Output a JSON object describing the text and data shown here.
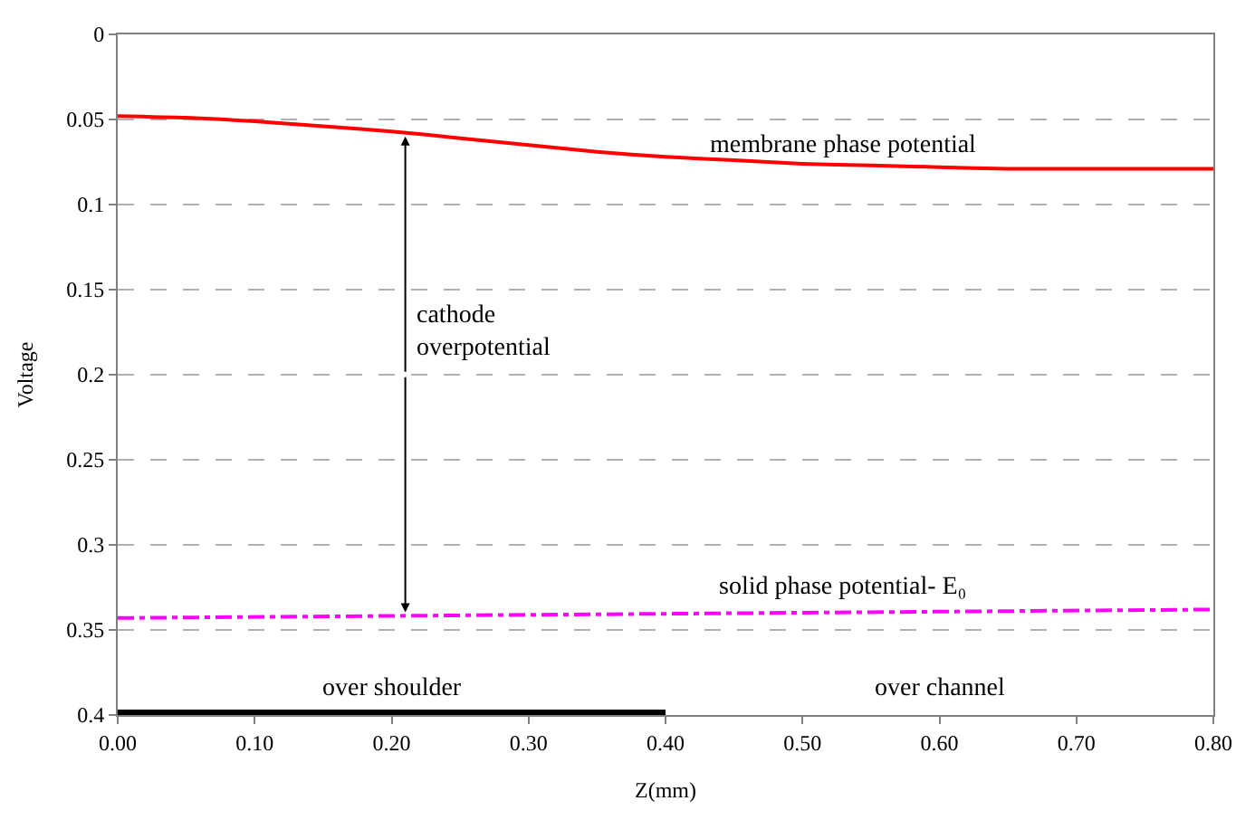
{
  "chart_data": {
    "type": "line",
    "xlabel": "Z(mm)",
    "ylabel": "Voltage",
    "x": [
      0,
      0.05,
      0.1,
      0.15,
      0.2,
      0.25,
      0.3,
      0.35,
      0.4,
      0.45,
      0.5,
      0.55,
      0.6,
      0.65,
      0.7,
      0.75,
      0.8
    ],
    "series": [
      {
        "color": "#ff0000",
        "line_style": "solid",
        "values": [
          0.048,
          0.049,
          0.051,
          0.054,
          0.057,
          0.061,
          0.065,
          0.069,
          0.072,
          0.074,
          0.076,
          0.077,
          0.078,
          0.079,
          0.079,
          0.079,
          0.079
        ]
      },
      {
        "color": "#ff00ff",
        "line_style": "dashdot",
        "x": [
          0,
          0.8
        ],
        "values": [
          0.343,
          0.338
        ]
      },
      {
        "color": "#000000",
        "line_style": "solid",
        "x": [
          0,
          0.4
        ],
        "values": [
          0.4,
          0.4
        ]
      }
    ],
    "xlim": [
      0,
      0.8
    ],
    "ylim": [
      0.4,
      0
    ],
    "xticks": [
      {
        "value": 0,
        "label": "0.00"
      },
      {
        "value": 0.1,
        "label": "0.10"
      },
      {
        "value": 0.2,
        "label": "0.20"
      },
      {
        "value": 0.3,
        "label": "0.30"
      },
      {
        "value": 0.4,
        "label": "0.40"
      },
      {
        "value": 0.5,
        "label": "0.50"
      },
      {
        "value": 0.6,
        "label": "0.60"
      },
      {
        "value": 0.7,
        "label": "0.70"
      },
      {
        "value": 0.8,
        "label": "0.80"
      }
    ],
    "yticks": [
      0,
      0.05,
      0.1,
      0.15,
      0.2,
      0.25,
      0.3,
      0.35,
      0.4
    ],
    "grid": "y",
    "marker": "none",
    "annotations": [
      "membrane phase potential",
      {
        "text": "cathode\noverpotential",
        "x": 0.21,
        "y": 0.058
      },
      "solid phase potential- E₀",
      "over shoulder",
      "over channel"
    ]
  }
}
